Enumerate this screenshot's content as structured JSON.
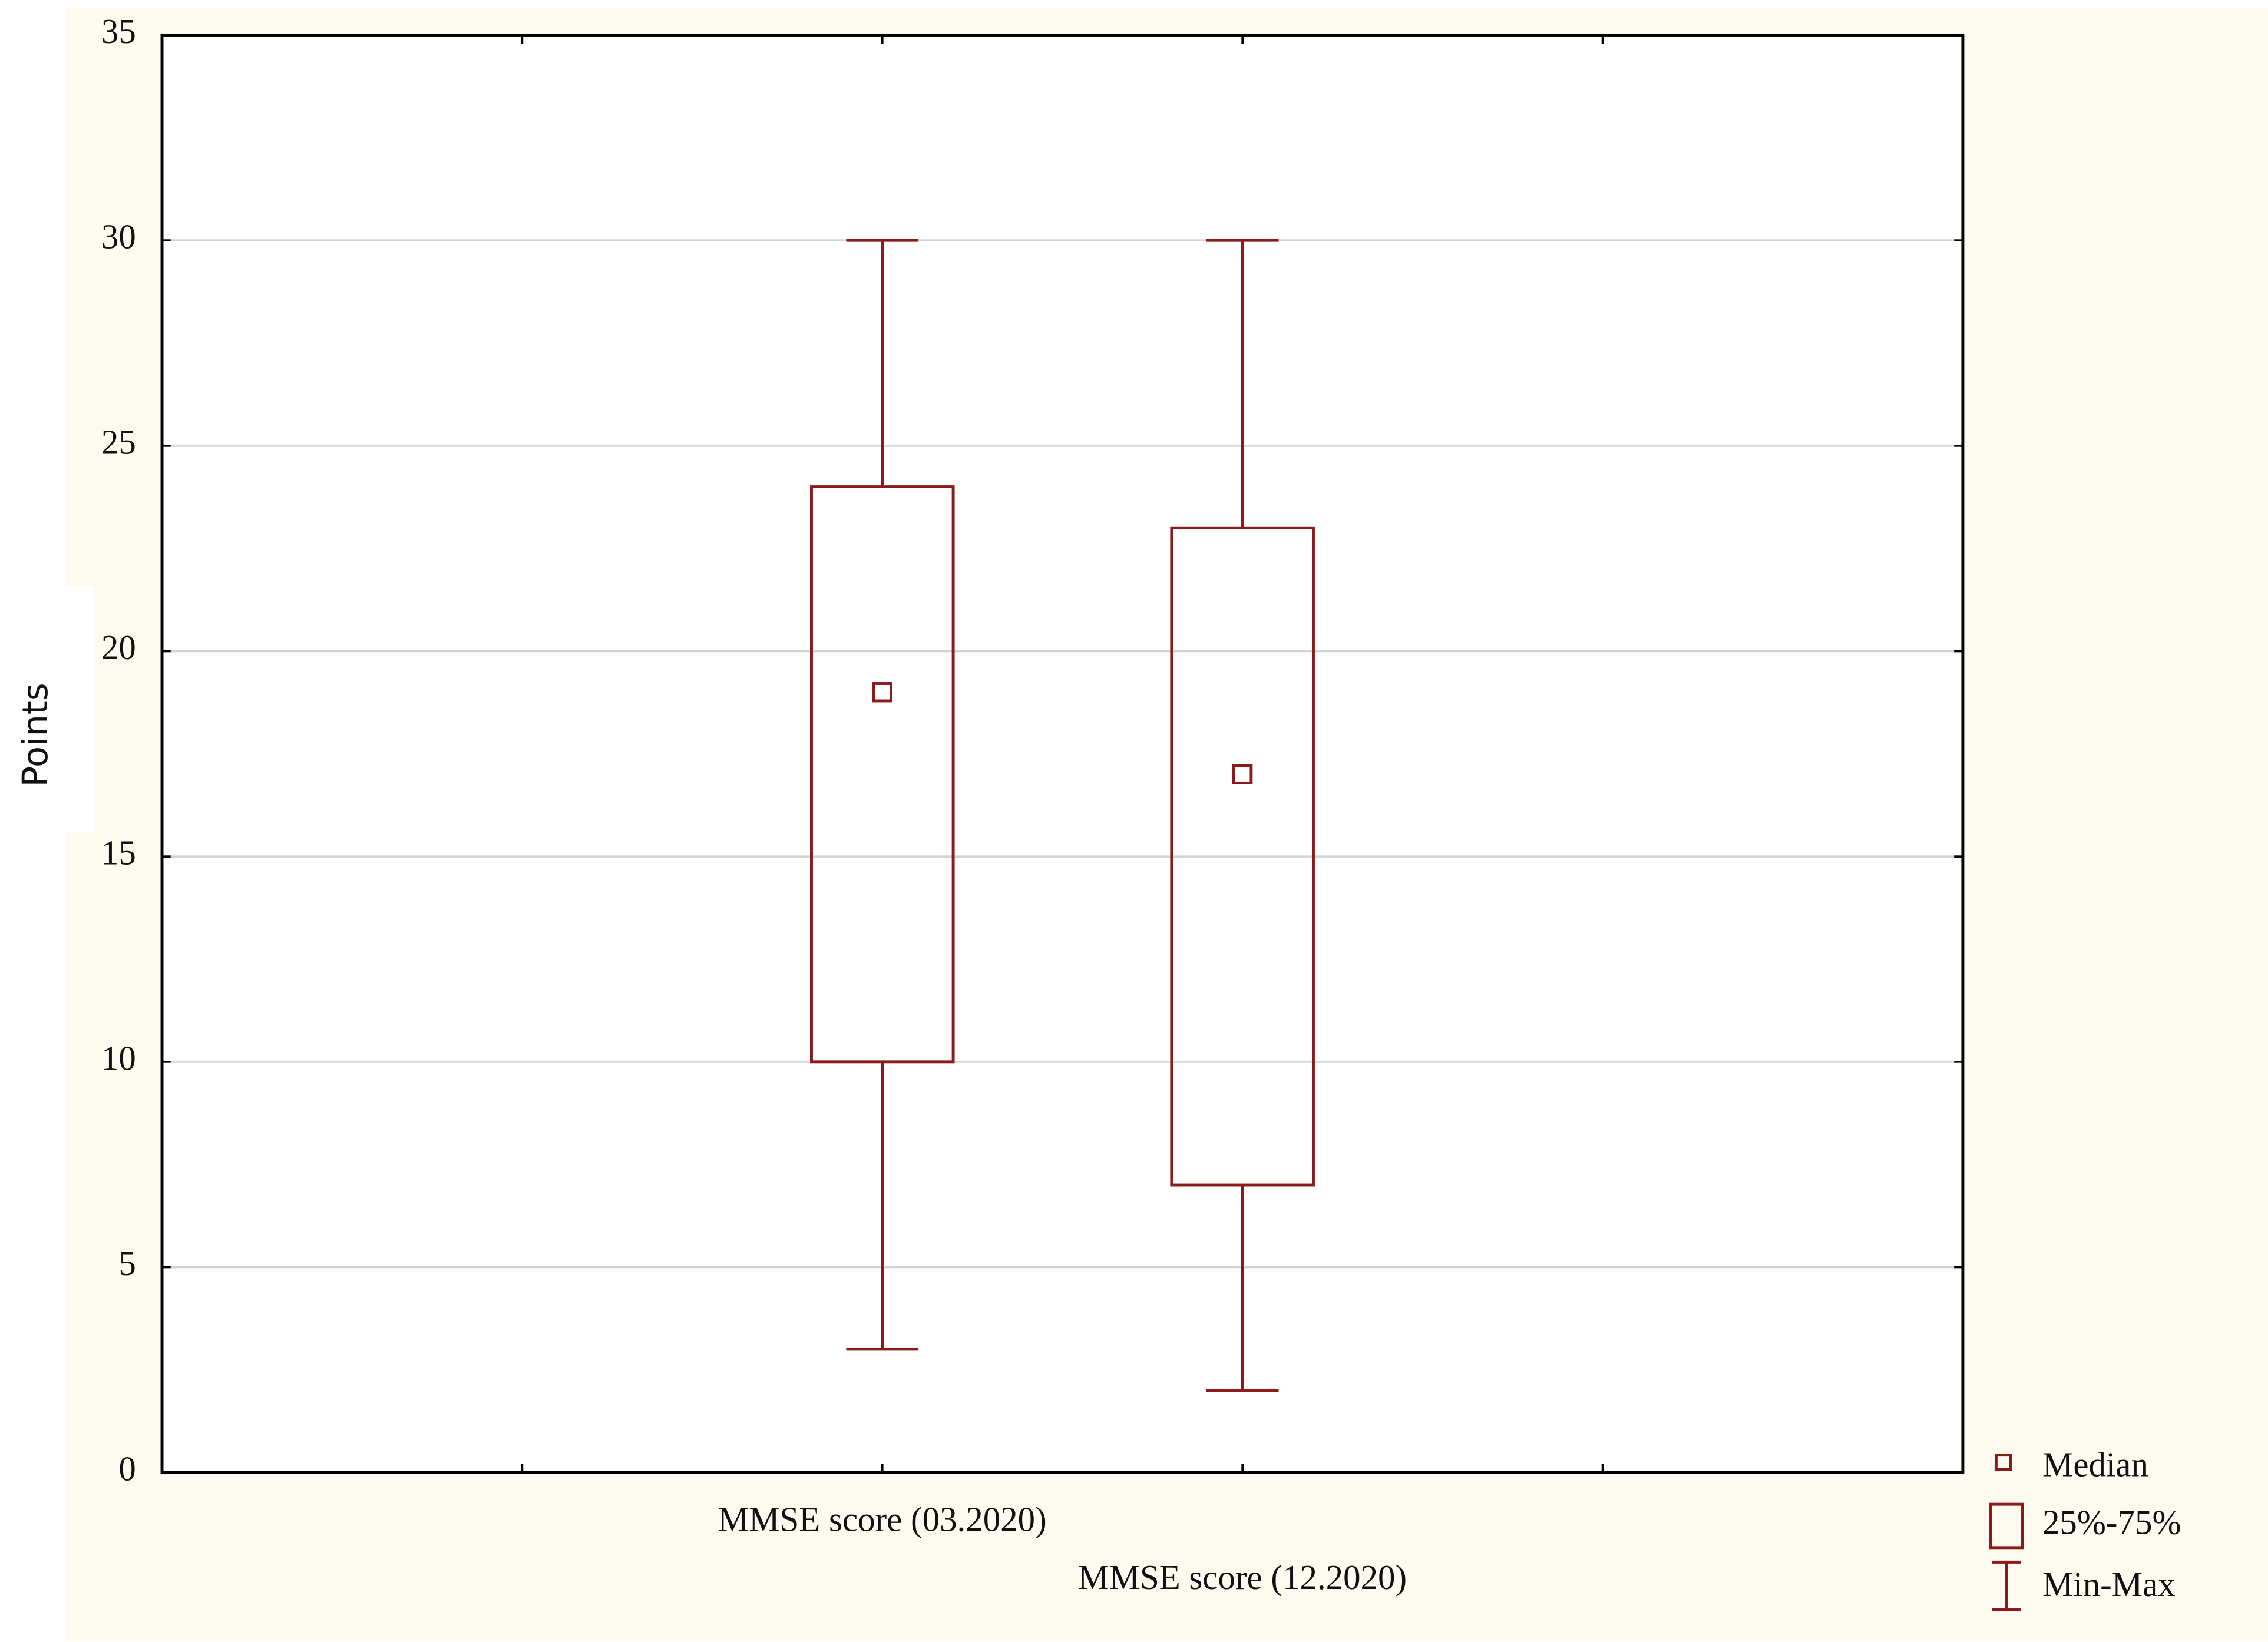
{
  "chart_data": {
    "type": "box",
    "y_label": "Points",
    "categories": [
      "MMSE score (03.2020)",
      "MMSE score (12.2020)"
    ],
    "min": [
      3,
      2
    ],
    "q1": [
      10,
      7
    ],
    "median": [
      19,
      17
    ],
    "q3": [
      24,
      23
    ],
    "max": [
      30,
      30
    ],
    "color": "#8b1a1a",
    "ylim": [
      0,
      35
    ],
    "yticks": [
      0,
      5,
      10,
      15,
      20,
      25,
      30,
      35
    ],
    "grid": true,
    "legend": [
      "Median",
      "25%-75%",
      "Min-Max"
    ],
    "legend_position": "bottom-right"
  }
}
